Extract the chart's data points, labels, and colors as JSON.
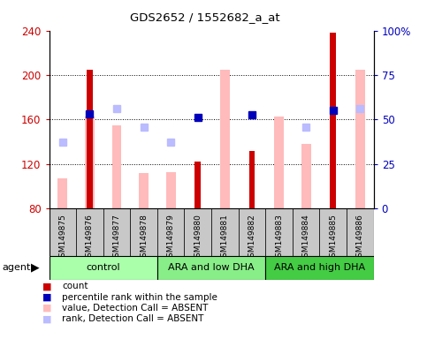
{
  "title": "GDS2652 / 1552682_a_at",
  "samples": [
    "GSM149875",
    "GSM149876",
    "GSM149877",
    "GSM149878",
    "GSM149879",
    "GSM149880",
    "GSM149881",
    "GSM149882",
    "GSM149883",
    "GSM149884",
    "GSM149885",
    "GSM149886"
  ],
  "groups": [
    {
      "label": "control",
      "start": 0,
      "end": 3,
      "color": "#aaffaa"
    },
    {
      "label": "ARA and low DHA",
      "start": 4,
      "end": 7,
      "color": "#88ee88"
    },
    {
      "label": "ARA and high DHA",
      "start": 8,
      "end": 11,
      "color": "#44cc44"
    }
  ],
  "count_values": [
    null,
    205,
    null,
    null,
    null,
    122,
    null,
    132,
    null,
    null,
    238,
    null
  ],
  "count_color": "#cc0000",
  "rank_values": [
    null,
    165,
    null,
    null,
    null,
    162,
    null,
    164,
    null,
    null,
    168,
    null
  ],
  "rank_color": "#0000bb",
  "absent_value_bars": [
    107,
    163,
    155,
    112,
    113,
    null,
    205,
    null,
    163,
    138,
    null,
    205
  ],
  "absent_value_color": "#ffbbbb",
  "absent_rank_points": [
    140,
    null,
    170,
    153,
    140,
    null,
    null,
    null,
    null,
    153,
    null,
    170
  ],
  "absent_rank_color": "#bbbbff",
  "ylim": [
    80,
    240
  ],
  "yticks_left": [
    80,
    120,
    160,
    200,
    240
  ],
  "y_right_labels": [
    "0",
    "25",
    "50",
    "75",
    "100%"
  ],
  "right_axis_color": "#0000bb",
  "grid_lines": [
    120,
    160,
    200
  ],
  "legend_items": [
    {
      "color": "#cc0000",
      "label": "count"
    },
    {
      "color": "#0000bb",
      "label": "percentile rank within the sample"
    },
    {
      "color": "#ffbbbb",
      "label": "value, Detection Call = ABSENT"
    },
    {
      "color": "#bbbbff",
      "label": "rank, Detection Call = ABSENT"
    }
  ]
}
